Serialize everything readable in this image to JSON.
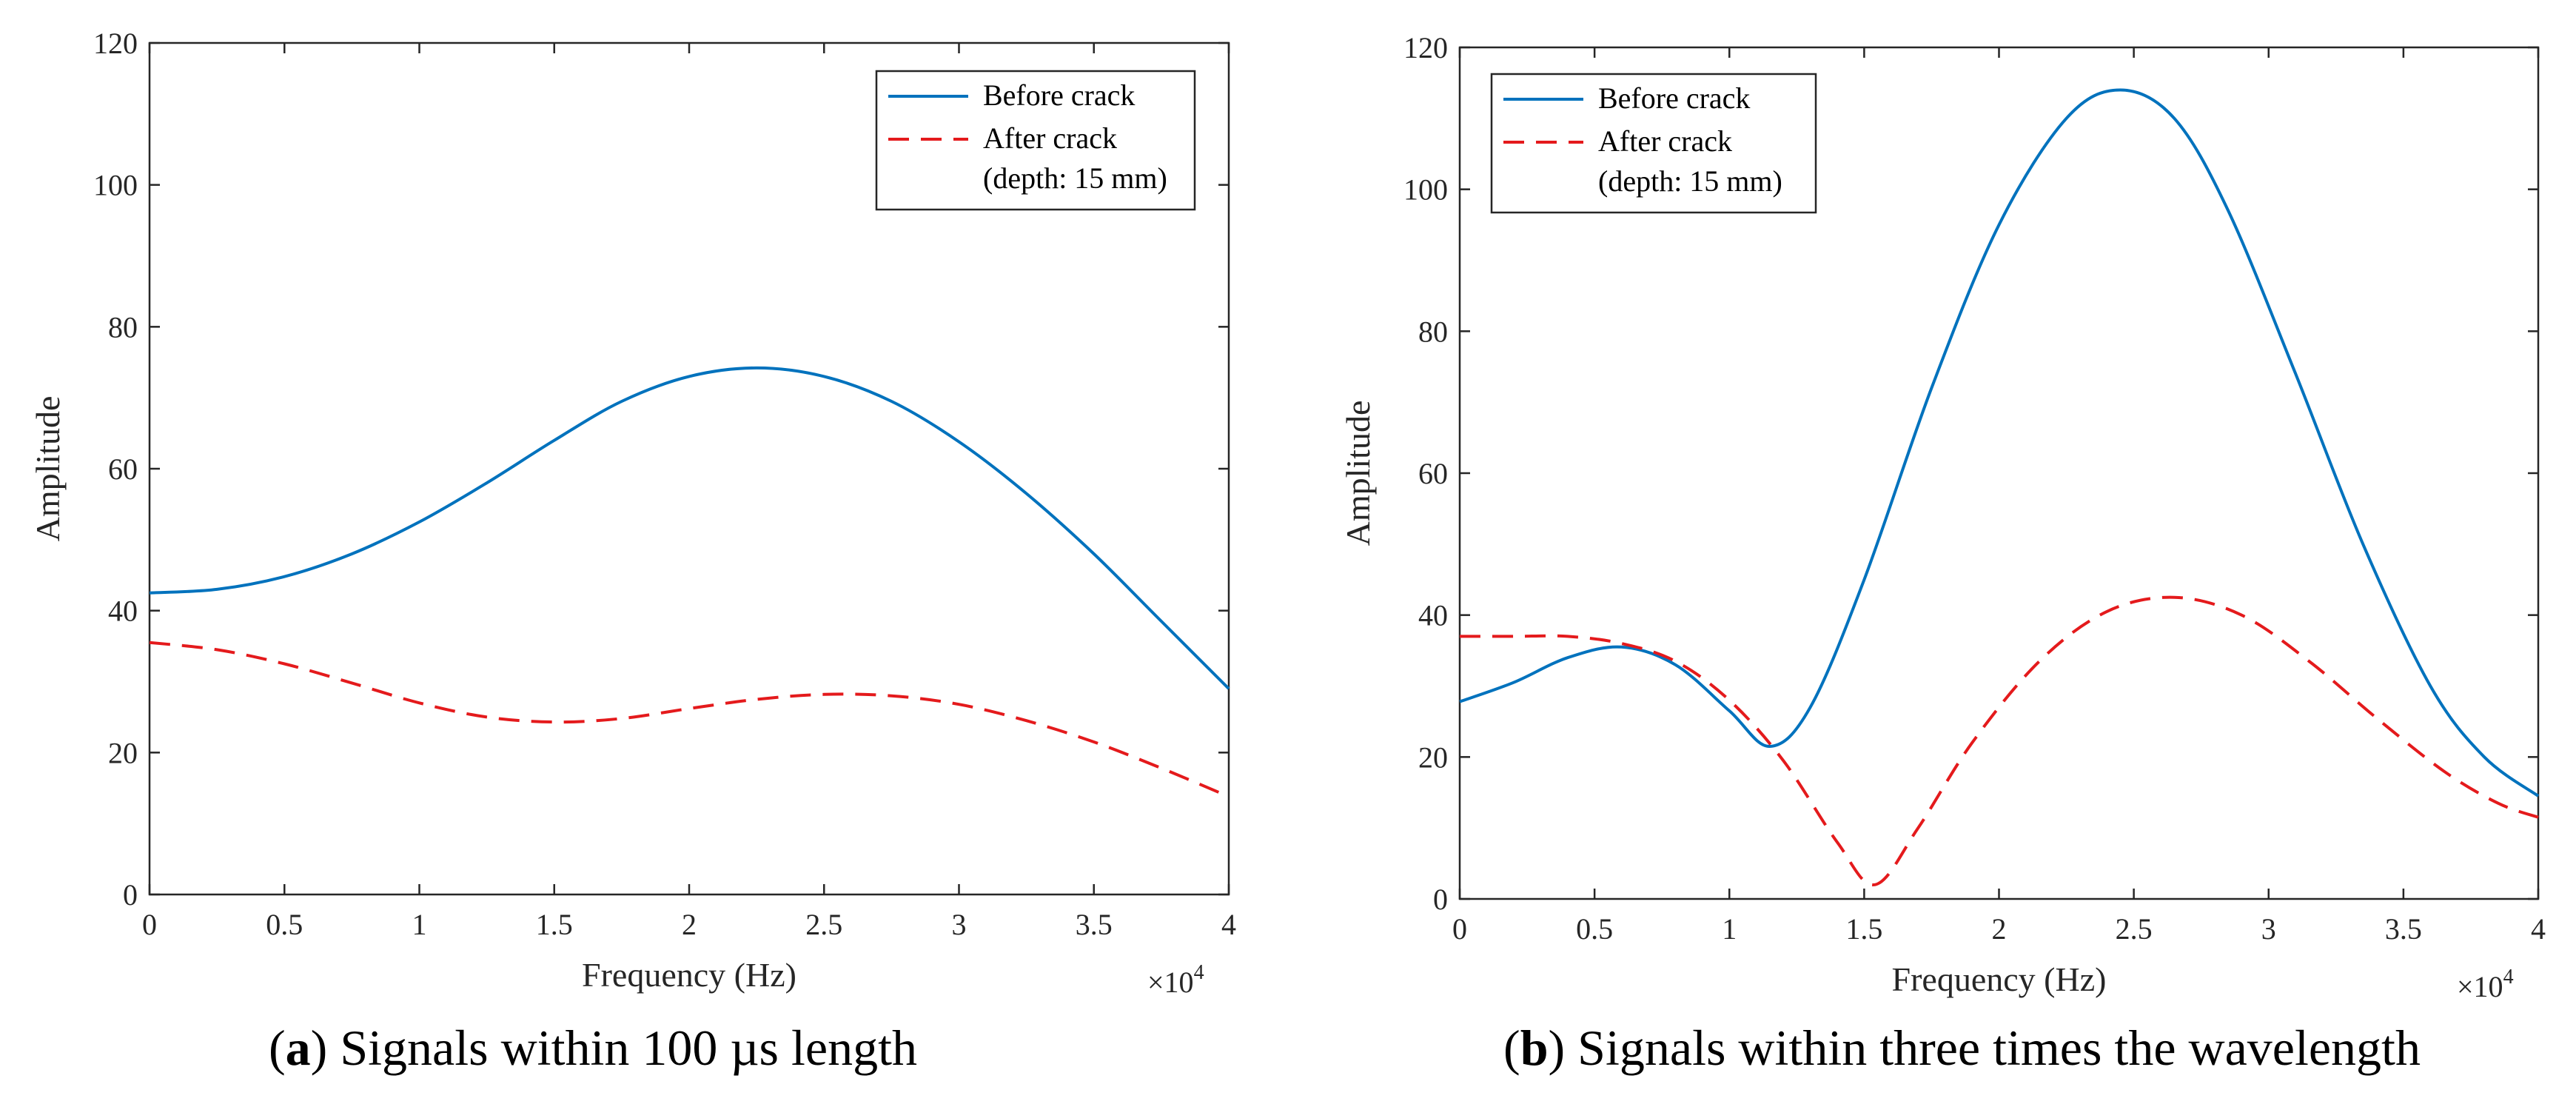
{
  "chart_data": [
    {
      "type": "line",
      "caption": {
        "letter": "a",
        "text": ") Signals within 100 µs length",
        "open": "("
      },
      "xlabel": "Frequency (Hz)",
      "ylabel": "Amplitude",
      "x_exponent": {
        "base": "×10",
        "power": "4"
      },
      "xlim": [
        0,
        40000
      ],
      "ylim": [
        0,
        120
      ],
      "xticks": [
        0,
        5000,
        10000,
        15000,
        20000,
        25000,
        30000,
        35000,
        40000
      ],
      "xtick_labels": [
        "0",
        "0.5",
        "1",
        "1.5",
        "2",
        "2.5",
        "3",
        "3.5",
        "4"
      ],
      "yticks": [
        0,
        20,
        40,
        60,
        80,
        100,
        120
      ],
      "ytick_labels": [
        "0",
        "20",
        "40",
        "60",
        "80",
        "100",
        "120"
      ],
      "grid": false,
      "legend": {
        "placement": "top-right",
        "entries": [
          {
            "lines": [
              "Before crack"
            ],
            "color": "#0072BD",
            "style": "solid"
          },
          {
            "lines": [
              "After crack",
              "(depth: 15 mm)"
            ],
            "color": "#E41A1C",
            "style": "dashed"
          }
        ]
      },
      "series": [
        {
          "name": "Before crack",
          "color": "#0072BD",
          "style": "solid",
          "x": [
            0,
            2500,
            5000,
            7500,
            10000,
            12500,
            15000,
            17500,
            20000,
            22500,
            25000,
            27500,
            30000,
            32500,
            35000,
            37500,
            40000
          ],
          "y": [
            42.5,
            43.0,
            44.8,
            48.0,
            52.5,
            58.0,
            64.0,
            69.5,
            73.0,
            74.2,
            73.0,
            69.5,
            63.8,
            56.5,
            48.0,
            38.5,
            29.0
          ]
        },
        {
          "name": "After crack (depth: 15 mm)",
          "color": "#E41A1C",
          "style": "dashed",
          "x": [
            0,
            2500,
            5000,
            7500,
            10000,
            12500,
            15000,
            17500,
            20000,
            22500,
            25000,
            27500,
            30000,
            32500,
            35000,
            37500,
            40000
          ],
          "y": [
            35.5,
            34.5,
            32.5,
            29.8,
            27.0,
            25.0,
            24.3,
            24.8,
            26.2,
            27.5,
            28.2,
            28.0,
            26.8,
            24.5,
            21.5,
            17.8,
            13.8
          ]
        }
      ]
    },
    {
      "type": "line",
      "caption": {
        "letter": "b",
        "text": ") Signals within three times the wavelength",
        "open": "("
      },
      "xlabel": "Frequency (Hz)",
      "ylabel": "Amplitude",
      "x_exponent": {
        "base": "×10",
        "power": "4"
      },
      "xlim": [
        0,
        40000
      ],
      "ylim": [
        0,
        120
      ],
      "xticks": [
        0,
        5000,
        10000,
        15000,
        20000,
        25000,
        30000,
        35000,
        40000
      ],
      "xtick_labels": [
        "0",
        "0.5",
        "1",
        "1.5",
        "2",
        "2.5",
        "3",
        "3.5",
        "4"
      ],
      "yticks": [
        0,
        20,
        40,
        60,
        80,
        100,
        120
      ],
      "ytick_labels": [
        "0",
        "20",
        "40",
        "60",
        "80",
        "100",
        "120"
      ],
      "grid": false,
      "legend": {
        "placement": "top-left",
        "entries": [
          {
            "lines": [
              "Before crack"
            ],
            "color": "#0072BD",
            "style": "solid"
          },
          {
            "lines": [
              "After crack",
              "(depth: 15 mm)"
            ],
            "color": "#E41A1C",
            "style": "dashed"
          }
        ]
      },
      "series": [
        {
          "name": "Before crack",
          "color": "#0072BD",
          "style": "solid",
          "x": [
            0,
            2000,
            4000,
            6000,
            8000,
            10000,
            11500,
            13000,
            15000,
            17500,
            20000,
            22500,
            24500,
            26500,
            28500,
            31000,
            33500,
            36000,
            38000,
            40000
          ],
          "y": [
            27.8,
            30.5,
            34.0,
            35.5,
            33.0,
            26.5,
            21.5,
            27.0,
            45.0,
            72.0,
            95.0,
            110.0,
            114.0,
            110.0,
            97.0,
            74.0,
            50.0,
            30.0,
            20.0,
            14.5
          ]
        },
        {
          "name": "After crack (depth: 15 mm)",
          "color": "#E41A1C",
          "style": "dashed",
          "x": [
            0,
            2000,
            4000,
            6000,
            8000,
            10000,
            12000,
            14000,
            15400,
            17000,
            19000,
            21500,
            24000,
            26500,
            29000,
            31500,
            34000,
            36500,
            38500,
            40000
          ],
          "y": [
            37.0,
            37.0,
            37.0,
            36.0,
            33.5,
            28.0,
            19.5,
            8.0,
            2.0,
            10.0,
            22.0,
            33.5,
            40.5,
            42.5,
            40.0,
            33.5,
            25.5,
            18.0,
            13.5,
            11.5
          ]
        }
      ]
    }
  ]
}
